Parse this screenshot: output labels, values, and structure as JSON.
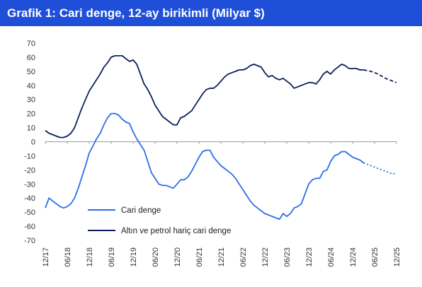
{
  "chart_data": {
    "type": "line",
    "title": "Grafik 1: Cari denge, 12-ay birikimli (Milyar $)",
    "xlabel": "",
    "ylabel": "",
    "ylim": [
      -70,
      70
    ],
    "y_ticks": [
      70,
      60,
      50,
      40,
      30,
      20,
      10,
      0,
      -10,
      -20,
      -30,
      -40,
      -50,
      -60,
      -70
    ],
    "x_range": [
      "2017-12",
      "2025-12"
    ],
    "x_tick_labels": [
      "12/17",
      "06/18",
      "12/18",
      "06/19",
      "12/19",
      "06/20",
      "12/20",
      "06/21",
      "12/21",
      "06/22",
      "12/22",
      "06/23",
      "12/23",
      "06/24",
      "12/24",
      "06/25",
      "12/25"
    ],
    "grid": false,
    "legend_position": "bottom-left",
    "series": [
      {
        "name": "Cari denge",
        "color": "#2b6fe8",
        "values": [
          {
            "x": "2017-12",
            "y": -47
          },
          {
            "x": "2018-01",
            "y": -40
          },
          {
            "x": "2018-02",
            "y": -42
          },
          {
            "x": "2018-03",
            "y": -44
          },
          {
            "x": "2018-04",
            "y": -46
          },
          {
            "x": "2018-05",
            "y": -47
          },
          {
            "x": "2018-06",
            "y": -46
          },
          {
            "x": "2018-07",
            "y": -44
          },
          {
            "x": "2018-08",
            "y": -40
          },
          {
            "x": "2018-09",
            "y": -33
          },
          {
            "x": "2018-10",
            "y": -25
          },
          {
            "x": "2018-11",
            "y": -17
          },
          {
            "x": "2018-12",
            "y": -8
          },
          {
            "x": "2019-01",
            "y": -3
          },
          {
            "x": "2019-02",
            "y": 2
          },
          {
            "x": "2019-03",
            "y": 6
          },
          {
            "x": "2019-04",
            "y": 12
          },
          {
            "x": "2019-05",
            "y": 17
          },
          {
            "x": "2019-06",
            "y": 20
          },
          {
            "x": "2019-07",
            "y": 20
          },
          {
            "x": "2019-08",
            "y": 19
          },
          {
            "x": "2019-09",
            "y": 16
          },
          {
            "x": "2019-10",
            "y": 14
          },
          {
            "x": "2019-11",
            "y": 13
          },
          {
            "x": "2019-12",
            "y": 7
          },
          {
            "x": "2020-01",
            "y": 2
          },
          {
            "x": "2020-02",
            "y": -2
          },
          {
            "x": "2020-03",
            "y": -6
          },
          {
            "x": "2020-04",
            "y": -14
          },
          {
            "x": "2020-05",
            "y": -22
          },
          {
            "x": "2020-06",
            "y": -26
          },
          {
            "x": "2020-07",
            "y": -30
          },
          {
            "x": "2020-08",
            "y": -31
          },
          {
            "x": "2020-09",
            "y": -31
          },
          {
            "x": "2020-10",
            "y": -32
          },
          {
            "x": "2020-11",
            "y": -33
          },
          {
            "x": "2020-12",
            "y": -30
          },
          {
            "x": "2021-01",
            "y": -27
          },
          {
            "x": "2021-02",
            "y": -27
          },
          {
            "x": "2021-03",
            "y": -25
          },
          {
            "x": "2021-04",
            "y": -21
          },
          {
            "x": "2021-05",
            "y": -16
          },
          {
            "x": "2021-06",
            "y": -11
          },
          {
            "x": "2021-07",
            "y": -7
          },
          {
            "x": "2021-08",
            "y": -6
          },
          {
            "x": "2021-09",
            "y": -6
          },
          {
            "x": "2021-10",
            "y": -11
          },
          {
            "x": "2021-11",
            "y": -14
          },
          {
            "x": "2021-12",
            "y": -17
          },
          {
            "x": "2022-01",
            "y": -19
          },
          {
            "x": "2022-02",
            "y": -21
          },
          {
            "x": "2022-03",
            "y": -23
          },
          {
            "x": "2022-04",
            "y": -26
          },
          {
            "x": "2022-05",
            "y": -30
          },
          {
            "x": "2022-06",
            "y": -34
          },
          {
            "x": "2022-07",
            "y": -38
          },
          {
            "x": "2022-08",
            "y": -42
          },
          {
            "x": "2022-09",
            "y": -45
          },
          {
            "x": "2022-10",
            "y": -47
          },
          {
            "x": "2022-11",
            "y": -49
          },
          {
            "x": "2022-12",
            "y": -51
          },
          {
            "x": "2023-01",
            "y": -52
          },
          {
            "x": "2023-02",
            "y": -53
          },
          {
            "x": "2023-03",
            "y": -54
          },
          {
            "x": "2023-04",
            "y": -55
          },
          {
            "x": "2023-05",
            "y": -51
          },
          {
            "x": "2023-06",
            "y": -53
          },
          {
            "x": "2023-07",
            "y": -51
          },
          {
            "x": "2023-08",
            "y": -47
          },
          {
            "x": "2023-09",
            "y": -46
          },
          {
            "x": "2023-10",
            "y": -44
          },
          {
            "x": "2023-11",
            "y": -37
          },
          {
            "x": "2023-12",
            "y": -30
          },
          {
            "x": "2024-01",
            "y": -27
          },
          {
            "x": "2024-02",
            "y": -26
          },
          {
            "x": "2024-03",
            "y": -26
          },
          {
            "x": "2024-04",
            "y": -21
          },
          {
            "x": "2024-05",
            "y": -20
          },
          {
            "x": "2024-06",
            "y": -14
          },
          {
            "x": "2024-07",
            "y": -10
          },
          {
            "x": "2024-08",
            "y": -9
          },
          {
            "x": "2024-09",
            "y": -7
          },
          {
            "x": "2024-10",
            "y": -7
          },
          {
            "x": "2024-11",
            "y": -9
          },
          {
            "x": "2024-12",
            "y": -11
          },
          {
            "x": "2025-01",
            "y": -12
          },
          {
            "x": "2025-02",
            "y": -13
          },
          {
            "x": "2025-03",
            "y": -15
          }
        ],
        "forecast": [
          {
            "x": "2025-03",
            "y": -15
          },
          {
            "x": "2025-05",
            "y": -17
          },
          {
            "x": "2025-07",
            "y": -19
          },
          {
            "x": "2025-09",
            "y": -21
          },
          {
            "x": "2025-11",
            "y": -23
          },
          {
            "x": "2025-12",
            "y": -22
          }
        ]
      },
      {
        "name": "Altın ve petrol hariç cari denge",
        "color": "#0d1f5c",
        "values": [
          {
            "x": "2017-12",
            "y": 8
          },
          {
            "x": "2018-01",
            "y": 6
          },
          {
            "x": "2018-02",
            "y": 5
          },
          {
            "x": "2018-03",
            "y": 4
          },
          {
            "x": "2018-04",
            "y": 3
          },
          {
            "x": "2018-05",
            "y": 3
          },
          {
            "x": "2018-06",
            "y": 4
          },
          {
            "x": "2018-07",
            "y": 6
          },
          {
            "x": "2018-08",
            "y": 10
          },
          {
            "x": "2018-09",
            "y": 17
          },
          {
            "x": "2018-10",
            "y": 24
          },
          {
            "x": "2018-11",
            "y": 30
          },
          {
            "x": "2018-12",
            "y": 36
          },
          {
            "x": "2019-01",
            "y": 40
          },
          {
            "x": "2019-02",
            "y": 44
          },
          {
            "x": "2019-03",
            "y": 48
          },
          {
            "x": "2019-04",
            "y": 53
          },
          {
            "x": "2019-05",
            "y": 56
          },
          {
            "x": "2019-06",
            "y": 60
          },
          {
            "x": "2019-07",
            "y": 61
          },
          {
            "x": "2019-08",
            "y": 61
          },
          {
            "x": "2019-09",
            "y": 61
          },
          {
            "x": "2019-10",
            "y": 59
          },
          {
            "x": "2019-11",
            "y": 57
          },
          {
            "x": "2019-12",
            "y": 58
          },
          {
            "x": "2020-01",
            "y": 55
          },
          {
            "x": "2020-02",
            "y": 48
          },
          {
            "x": "2020-03",
            "y": 41
          },
          {
            "x": "2020-04",
            "y": 37
          },
          {
            "x": "2020-05",
            "y": 32
          },
          {
            "x": "2020-06",
            "y": 26
          },
          {
            "x": "2020-07",
            "y": 22
          },
          {
            "x": "2020-08",
            "y": 18
          },
          {
            "x": "2020-09",
            "y": 16
          },
          {
            "x": "2020-10",
            "y": 14
          },
          {
            "x": "2020-11",
            "y": 12
          },
          {
            "x": "2020-12",
            "y": 12
          },
          {
            "x": "2021-01",
            "y": 17
          },
          {
            "x": "2021-02",
            "y": 18
          },
          {
            "x": "2021-03",
            "y": 20
          },
          {
            "x": "2021-04",
            "y": 22
          },
          {
            "x": "2021-05",
            "y": 26
          },
          {
            "x": "2021-06",
            "y": 30
          },
          {
            "x": "2021-07",
            "y": 34
          },
          {
            "x": "2021-08",
            "y": 37
          },
          {
            "x": "2021-09",
            "y": 38
          },
          {
            "x": "2021-10",
            "y": 38
          },
          {
            "x": "2021-11",
            "y": 40
          },
          {
            "x": "2021-12",
            "y": 43
          },
          {
            "x": "2022-01",
            "y": 46
          },
          {
            "x": "2022-02",
            "y": 48
          },
          {
            "x": "2022-03",
            "y": 49
          },
          {
            "x": "2022-04",
            "y": 50
          },
          {
            "x": "2022-05",
            "y": 51
          },
          {
            "x": "2022-06",
            "y": 51
          },
          {
            "x": "2022-07",
            "y": 52
          },
          {
            "x": "2022-08",
            "y": 54
          },
          {
            "x": "2022-09",
            "y": 55
          },
          {
            "x": "2022-10",
            "y": 54
          },
          {
            "x": "2022-11",
            "y": 53
          },
          {
            "x": "2022-12",
            "y": 49
          },
          {
            "x": "2023-01",
            "y": 46
          },
          {
            "x": "2023-02",
            "y": 47
          },
          {
            "x": "2023-03",
            "y": 45
          },
          {
            "x": "2023-04",
            "y": 44
          },
          {
            "x": "2023-05",
            "y": 45
          },
          {
            "x": "2023-06",
            "y": 43
          },
          {
            "x": "2023-07",
            "y": 41
          },
          {
            "x": "2023-08",
            "y": 38
          },
          {
            "x": "2023-09",
            "y": 39
          },
          {
            "x": "2023-10",
            "y": 40
          },
          {
            "x": "2023-11",
            "y": 41
          },
          {
            "x": "2023-12",
            "y": 42
          },
          {
            "x": "2024-01",
            "y": 42
          },
          {
            "x": "2024-02",
            "y": 41
          },
          {
            "x": "2024-03",
            "y": 44
          },
          {
            "x": "2024-04",
            "y": 48
          },
          {
            "x": "2024-05",
            "y": 50
          },
          {
            "x": "2024-06",
            "y": 48
          },
          {
            "x": "2024-07",
            "y": 51
          },
          {
            "x": "2024-08",
            "y": 53
          },
          {
            "x": "2024-09",
            "y": 55
          },
          {
            "x": "2024-10",
            "y": 54
          },
          {
            "x": "2024-11",
            "y": 52
          },
          {
            "x": "2024-12",
            "y": 52
          },
          {
            "x": "2025-01",
            "y": 52
          },
          {
            "x": "2025-02",
            "y": 51
          },
          {
            "x": "2025-03",
            "y": 51
          }
        ],
        "forecast": [
          {
            "x": "2025-03",
            "y": 51
          },
          {
            "x": "2025-05",
            "y": 50
          },
          {
            "x": "2025-07",
            "y": 48
          },
          {
            "x": "2025-09",
            "y": 45
          },
          {
            "x": "2025-11",
            "y": 43
          },
          {
            "x": "2025-12",
            "y": 42
          }
        ]
      }
    ]
  }
}
